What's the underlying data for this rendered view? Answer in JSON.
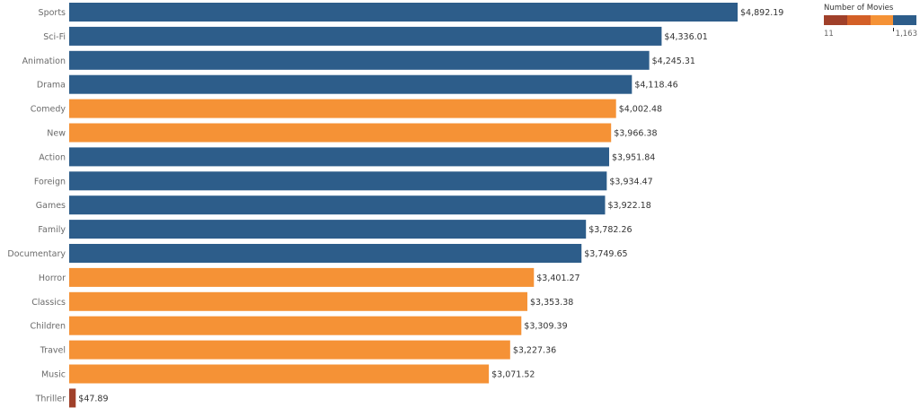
{
  "chart_data": {
    "type": "bar",
    "orientation": "horizontal",
    "title": "",
    "xlabel": "",
    "ylabel": "",
    "value_format": "currency",
    "categories": [
      "Sports",
      "Sci-Fi",
      "Animation",
      "Drama",
      "Comedy",
      "New",
      "Action",
      "Foreign",
      "Games",
      "Family",
      "Documentary",
      "Horror",
      "Classics",
      "Children",
      "Travel",
      "Music",
      "Thriller"
    ],
    "values": [
      4892.19,
      4336.01,
      4245.31,
      4118.46,
      4002.48,
      3966.38,
      3951.84,
      3934.47,
      3922.18,
      3782.26,
      3749.65,
      3401.27,
      3353.38,
      3309.39,
      3227.36,
      3071.52,
      47.89
    ],
    "value_labels": [
      "$4,892.19",
      "$4,336.01",
      "$4,245.31",
      "$4,118.46",
      "$4,002.48",
      "$3,966.38",
      "$3,951.84",
      "$3,934.47",
      "$3,922.18",
      "$3,782.26",
      "$3,749.65",
      "$3,401.27",
      "$3,353.38",
      "$3,309.39",
      "$3,227.36",
      "$3,071.52",
      "$47.89"
    ],
    "color_group": [
      "high",
      "high",
      "high",
      "high",
      "mid",
      "mid",
      "high",
      "high",
      "high",
      "high",
      "high",
      "mid",
      "mid",
      "mid",
      "mid",
      "mid",
      "low"
    ],
    "xlim": [
      0,
      4892.19
    ],
    "grid": false,
    "legend": {
      "title": "Number of Movies",
      "type": "color-ramp",
      "min_label": "11",
      "max_label": "1,163",
      "placement": "top-right",
      "colors": [
        "#a0402a",
        "#d35f27",
        "#f59236",
        "#2d5d8a"
      ]
    }
  },
  "colors": {
    "high": "#2d5d8a",
    "mid": "#f59236",
    "low": "#a0402a"
  }
}
